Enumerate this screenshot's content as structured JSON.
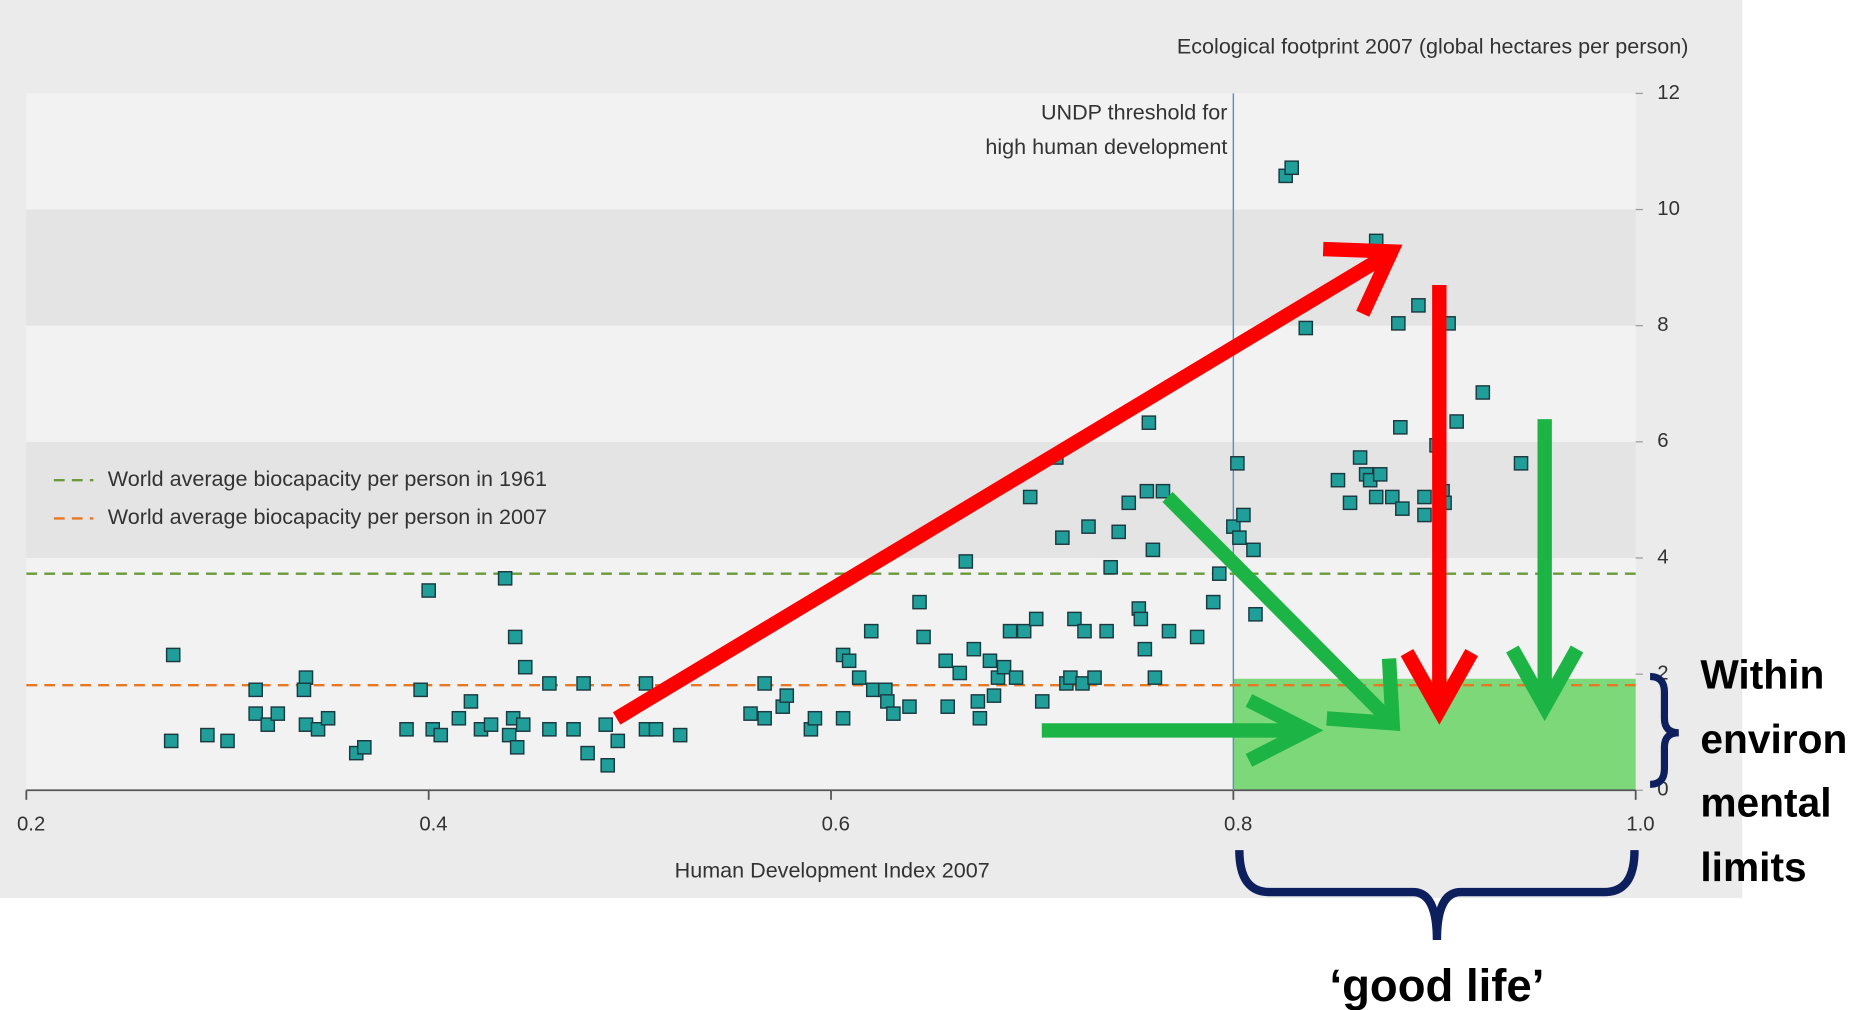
{
  "chart_data": {
    "type": "scatter",
    "ylabel": "Ecological footprint 2007 (global hectares per person)",
    "xlabel": "Human Development Index 2007",
    "color": "#1f9e9a",
    "xlim": [
      0.2,
      1.0
    ],
    "xticks": [
      0.2,
      0.4,
      0.6,
      0.8,
      {
        "value": 1,
        "label": "1.0"
      }
    ],
    "ylim": [
      0,
      12
    ],
    "yticks": [
      0,
      2,
      4,
      6,
      8,
      10,
      12
    ],
    "threshold": {
      "label": [
        "UNDP threshold for",
        "high human development"
      ],
      "value": 0.8
    },
    "reference_lines": [
      {
        "name": "World average biocapacity  per person in 1961",
        "color": "#6a9a3a",
        "value": 3.73
      },
      {
        "name": "World average biocapacity per person in 2007",
        "color": "#e87722",
        "value": 1.81
      }
    ],
    "highlight": {
      "xlim": [
        0.8,
        1.0
      ],
      "ylim": [
        0,
        1.92
      ],
      "color": "#7dd87a"
    },
    "annotations": {
      "limits": [
        "Within",
        "environ",
        "mental",
        "limits"
      ],
      "good_life": "‘good life’"
    },
    "x": [
      0.273,
      0.272,
      0.29,
      0.3,
      0.314,
      0.314,
      0.32,
      0.325,
      0.339,
      0.338,
      0.339,
      0.345,
      0.35,
      0.364,
      0.368,
      0.389,
      0.396,
      0.4,
      0.402,
      0.406,
      0.415,
      0.421,
      0.426,
      0.431,
      0.438,
      0.44,
      0.442,
      0.443,
      0.444,
      0.447,
      0.448,
      0.46,
      0.46,
      0.472,
      0.477,
      0.479,
      0.488,
      0.489,
      0.494,
      0.508,
      0.508,
      0.513,
      0.525,
      0.56,
      0.567,
      0.567,
      0.576,
      0.578,
      0.59,
      0.592,
      0.606,
      0.606,
      0.609,
      0.614,
      0.62,
      0.621,
      0.627,
      0.628,
      0.631,
      0.639,
      0.644,
      0.646,
      0.657,
      0.658,
      0.664,
      0.667,
      0.671,
      0.673,
      0.674,
      0.679,
      0.681,
      0.683,
      0.686,
      0.689,
      0.692,
      0.696,
      0.699,
      0.702,
      0.705,
      0.712,
      0.715,
      0.717,
      0.719,
      0.721,
      0.725,
      0.726,
      0.728,
      0.731,
      0.737,
      0.739,
      0.743,
      0.748,
      0.753,
      0.754,
      0.756,
      0.757,
      0.758,
      0.76,
      0.761,
      0.765,
      0.768,
      0.782,
      0.79,
      0.793,
      0.8,
      0.802,
      0.803,
      0.805,
      0.811,
      0.81,
      0.826,
      0.829,
      0.836,
      0.852,
      0.858,
      0.863,
      0.866,
      0.871,
      0.868,
      0.871,
      0.873,
      0.879,
      0.882,
      0.883,
      0.884,
      0.892,
      0.895,
      0.895,
      0.901,
      0.904,
      0.905,
      0.907,
      0.911,
      0.924,
      0.943
    ],
    "values": [
      2.33,
      0.85,
      0.95,
      0.85,
      1.73,
      1.32,
      1.13,
      1.32,
      1.94,
      1.73,
      1.13,
      1.05,
      1.24,
      0.64,
      0.74,
      1.05,
      1.73,
      3.44,
      1.05,
      0.95,
      1.24,
      1.53,
      1.05,
      1.13,
      3.65,
      0.95,
      1.24,
      2.64,
      0.74,
      1.13,
      2.12,
      1.84,
      1.05,
      1.05,
      1.84,
      0.64,
      1.13,
      0.43,
      0.85,
      1.84,
      1.05,
      1.05,
      0.95,
      1.32,
      1.84,
      1.24,
      1.44,
      1.63,
      1.05,
      1.24,
      1.24,
      2.33,
      2.23,
      1.94,
      2.74,
      1.73,
      1.73,
      1.53,
      1.32,
      1.44,
      3.24,
      2.64,
      2.23,
      1.44,
      2.02,
      3.94,
      2.43,
      1.53,
      1.24,
      2.23,
      1.63,
      1.94,
      2.12,
      2.74,
      1.94,
      2.74,
      5.05,
      2.95,
      1.53,
      5.73,
      4.35,
      1.84,
      1.94,
      2.95,
      1.84,
      2.74,
      4.54,
      1.94,
      2.74,
      3.84,
      4.45,
      4.95,
      3.13,
      2.95,
      2.43,
      5.15,
      6.33,
      4.14,
      1.94,
      5.15,
      2.74,
      2.64,
      3.24,
      3.73,
      4.54,
      5.63,
      4.35,
      4.74,
      3.03,
      4.14,
      10.58,
      10.72,
      7.96,
      5.34,
      4.95,
      5.73,
      5.44,
      9.46,
      5.34,
      5.05,
      5.44,
      5.05,
      8.04,
      6.25,
      4.85,
      8.35,
      5.05,
      4.74,
      5.94,
      5.15,
      4.95,
      8.04,
      6.35,
      6.85,
      5.63
    ]
  }
}
